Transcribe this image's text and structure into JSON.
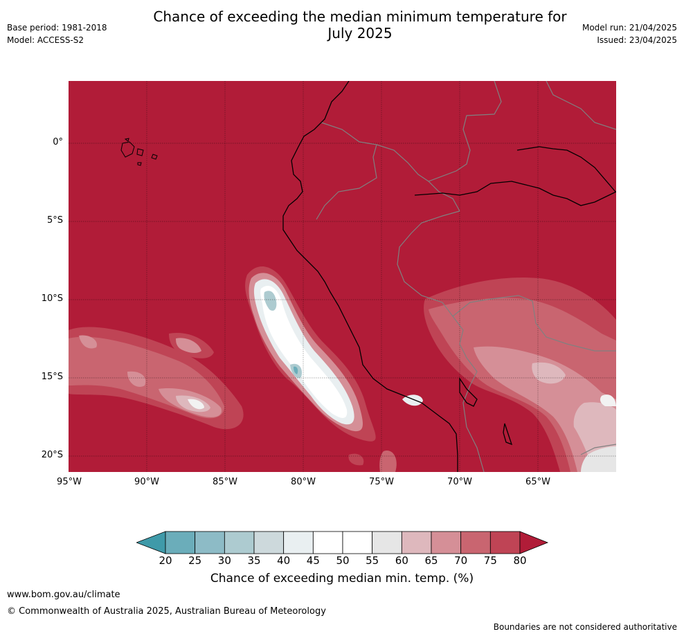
{
  "header": {
    "base_period": "Base period: 1981-2018",
    "model": "Model: ACCESS-S2",
    "title_line1": "Chance of exceeding the median minimum temperature for",
    "title_line2": "July 2025",
    "model_run": "Model run: 21/04/2025",
    "issued": "Issued: 23/04/2025"
  },
  "map": {
    "lat_labels": [
      "0°",
      "5°S",
      "10°S",
      "15°S",
      "20°S"
    ],
    "lon_labels": [
      "95°W",
      "90°W",
      "85°W",
      "80°W",
      "75°W",
      "70°W",
      "65°W"
    ],
    "dominant_category": "80+",
    "dominant_color": "#b11c38"
  },
  "colorbar": {
    "ticks": [
      "20",
      "25",
      "30",
      "35",
      "40",
      "45",
      "50",
      "55",
      "60",
      "65",
      "70",
      "75",
      "80"
    ],
    "colors": [
      "#3f9aa9",
      "#6badba",
      "#8dbbc6",
      "#adcbd0",
      "#cdd9dc",
      "#e9eff1",
      "#ffffff",
      "#ffffff",
      "#e6e6e6",
      "#deb8bd",
      "#d58f97",
      "#c96570",
      "#bf4455",
      "#b11c38"
    ],
    "label": "Chance of exceeding median min. temp. (%)"
  },
  "footer": {
    "website": "www.bom.gov.au/climate",
    "copyright": "© Commonwealth of Australia 2025, Australian Bureau of Meteorology",
    "disclaimer": "Boundaries are not considered authoritative"
  }
}
